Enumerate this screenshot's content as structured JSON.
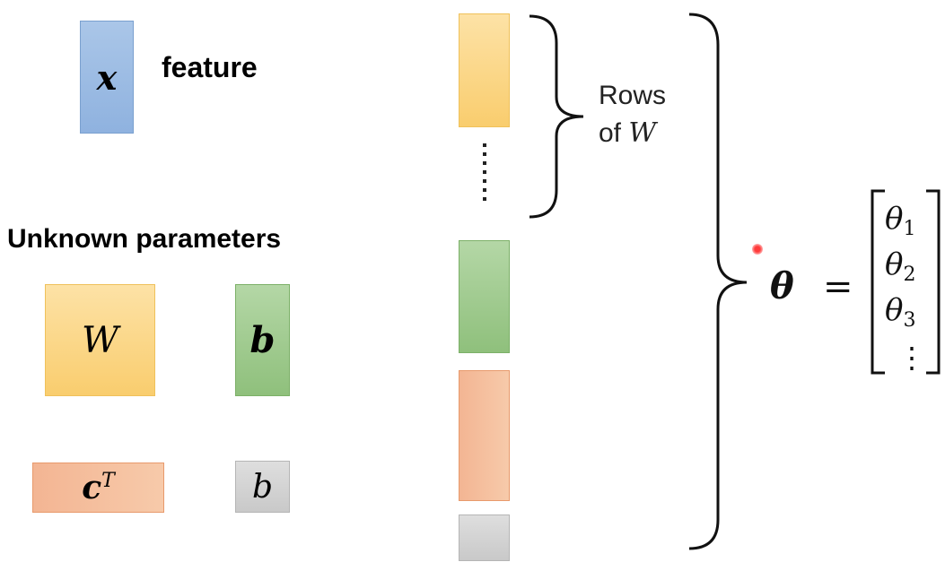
{
  "feature_box": {
    "symbol": "x",
    "label": "feature"
  },
  "unknown_parameters": {
    "heading": "Unknown parameters",
    "W_symbol": "W",
    "b_vector_symbol": "b",
    "cT_base": "c",
    "cT_sup": "T",
    "b_scalar_symbol": "b"
  },
  "rows_annotation": {
    "line1": "Rows",
    "line2_prefix": "of ",
    "line2_symbol": "W"
  },
  "theta_equation": {
    "lhs": "θ",
    "equals": "=",
    "entries": [
      {
        "base": "θ",
        "sub": "1"
      },
      {
        "base": "θ",
        "sub": "2"
      },
      {
        "base": "θ",
        "sub": "3"
      }
    ],
    "ellipsis": "⋮"
  },
  "colors": {
    "feature": "#8fb2df",
    "W": "#f9cd6e",
    "b_vector": "#8fc07c",
    "cT": "#f3b593",
    "b_scalar": "#c9c9c9",
    "laser_pointer": "#ff3b3b"
  }
}
